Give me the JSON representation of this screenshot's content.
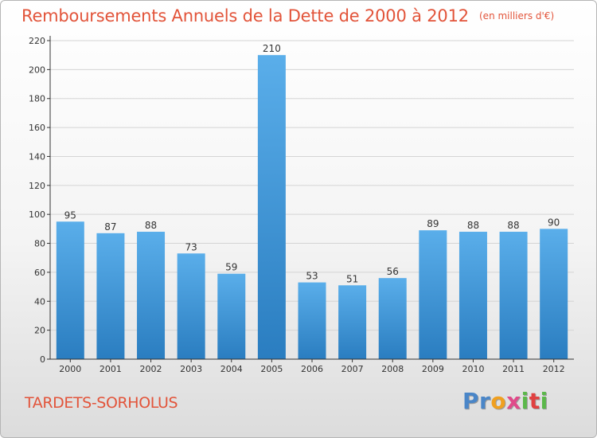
{
  "chart_data": {
    "type": "bar",
    "title": "Remboursements Annuels de la Dette de 2000 à 2012",
    "subtitle": "(en milliers d'€)",
    "categories": [
      "2000",
      "2001",
      "2002",
      "2003",
      "2004",
      "2005",
      "2006",
      "2007",
      "2008",
      "2009",
      "2010",
      "2011",
      "2012"
    ],
    "values": [
      95,
      87,
      88,
      73,
      59,
      210,
      53,
      51,
      56,
      89,
      88,
      88,
      90
    ],
    "ylim": [
      0,
      220
    ],
    "yticks": [
      0,
      20,
      40,
      60,
      80,
      100,
      120,
      140,
      160,
      180,
      200,
      220
    ],
    "grid": true,
    "bar_color": "#3d93d6"
  },
  "footer": {
    "commune": "TARDETS-SORHOLUS",
    "brand_letters": [
      "P",
      "r",
      "o",
      "x",
      "i",
      "t",
      "i"
    ],
    "brand_colors": [
      "#4a86c8",
      "#4a86c8",
      "#f0a020",
      "#e04a8a",
      "#5bb84a",
      "#e04040",
      "#5bb84a"
    ]
  }
}
